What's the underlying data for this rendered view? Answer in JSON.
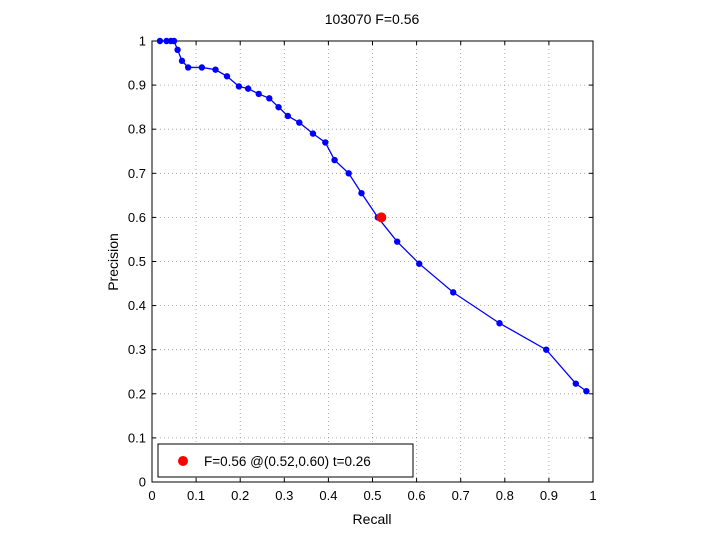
{
  "chart_data": {
    "type": "line",
    "title": "103070 F=0.56",
    "xlabel": "Recall",
    "ylabel": "Precision",
    "xlim": [
      0,
      1
    ],
    "ylim": [
      0,
      1
    ],
    "grid": true,
    "xticks": [
      "0",
      "0.1",
      "0.2",
      "0.3",
      "0.4",
      "0.5",
      "0.6",
      "0.7",
      "0.8",
      "0.9",
      "1"
    ],
    "yticks": [
      "0",
      "0.1",
      "0.2",
      "0.3",
      "0.4",
      "0.5",
      "0.6",
      "0.7",
      "0.8",
      "0.9",
      "1"
    ],
    "colors": {
      "series": "#0000ff",
      "highlight": "#ff0000"
    },
    "series": [
      {
        "x": [
          0.018,
          0.033,
          0.043,
          0.05,
          0.058,
          0.068,
          0.082,
          0.113,
          0.144,
          0.17,
          0.197,
          0.218,
          0.242,
          0.266,
          0.287,
          0.308,
          0.334,
          0.365,
          0.393,
          0.414,
          0.446,
          0.475,
          0.512,
          0.556,
          0.606,
          0.683,
          0.788,
          0.894,
          0.961,
          0.985
        ],
        "y": [
          1.0,
          1.0,
          1.0,
          1.0,
          0.98,
          0.955,
          0.94,
          0.94,
          0.935,
          0.92,
          0.897,
          0.892,
          0.88,
          0.87,
          0.85,
          0.83,
          0.815,
          0.79,
          0.77,
          0.73,
          0.7,
          0.655,
          0.6,
          0.545,
          0.495,
          0.43,
          0.36,
          0.3,
          0.223,
          0.206
        ]
      }
    ],
    "highlight_point": {
      "x": 0.52,
      "y": 0.6
    },
    "legend": {
      "placement": "bottom-left",
      "entries": [
        "F=0.56 @(0.52,0.60) t=0.26"
      ]
    }
  }
}
